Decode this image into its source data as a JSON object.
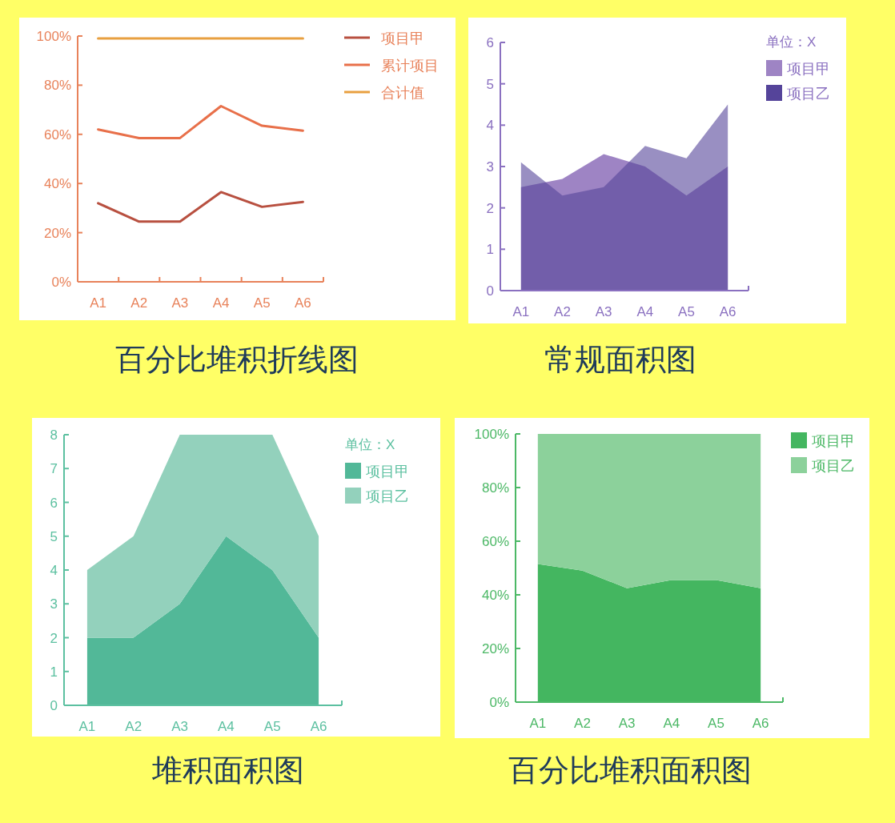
{
  "chart_data": [
    {
      "type": "line",
      "title": "百分比堆积折线图",
      "categories": [
        "A1",
        "A2",
        "A3",
        "A4",
        "A5",
        "A6"
      ],
      "ylim": [
        0,
        100
      ],
      "yticks": [
        {
          "value": 0,
          "label": "0%"
        },
        {
          "value": 20,
          "label": "20%"
        },
        {
          "value": 40,
          "label": "40%"
        },
        {
          "value": 60,
          "label": "60%"
        },
        {
          "value": 80,
          "label": "80%"
        },
        {
          "value": 100,
          "label": "100%"
        }
      ],
      "legend": "top right",
      "line_style": "solid",
      "marker": "none",
      "series": [
        {
          "name": "项目甲",
          "color": "#b85040",
          "values": [
            32,
            24.5,
            24.5,
            36.5,
            30.5,
            32.5
          ]
        },
        {
          "name": "累计项目",
          "color": "#e8704a",
          "values": [
            62,
            58.5,
            58.5,
            71.5,
            63.5,
            61.5
          ]
        },
        {
          "name": "合计值",
          "color": "#e8a040",
          "values": [
            99,
            99,
            99,
            99,
            99,
            99
          ]
        }
      ]
    },
    {
      "type": "area",
      "title": "常规面积图",
      "legend_title": "单位：X",
      "categories": [
        "A1",
        "A2",
        "A3",
        "A4",
        "A5",
        "A6"
      ],
      "ylim": [
        0,
        6
      ],
      "yticks": [
        0,
        1,
        2,
        3,
        4,
        5,
        6
      ],
      "legend": "top right",
      "series": [
        {
          "name": "项目甲",
          "color": "#9e84c4",
          "values": [
            2.5,
            2.7,
            3.3,
            3,
            2.3,
            3
          ]
        },
        {
          "name": "项目乙",
          "color": "#55449a",
          "values": [
            3.1,
            2.3,
            2.5,
            3.5,
            3.2,
            4.5
          ]
        }
      ]
    },
    {
      "type": "area",
      "title": "堆积面积图",
      "legend_title": "单位：X",
      "stacked": true,
      "categories": [
        "A1",
        "A2",
        "A3",
        "A4",
        "A5",
        "A6"
      ],
      "ylim": [
        0,
        8
      ],
      "yticks": [
        0,
        1,
        2,
        3,
        4,
        5,
        6,
        7,
        8
      ],
      "legend": "top right",
      "series": [
        {
          "name": "项目甲",
          "color": "#52b898",
          "values": [
            2,
            2,
            3,
            5,
            4,
            2
          ]
        },
        {
          "name": "项目乙",
          "color": "#93d1bc",
          "values": [
            2,
            3,
            5,
            3,
            4,
            3
          ]
        }
      ]
    },
    {
      "type": "area",
      "title": "百分比堆积面积图",
      "stacked": true,
      "categories": [
        "A1",
        "A2",
        "A3",
        "A4",
        "A5",
        "A6"
      ],
      "ylim": [
        0,
        100
      ],
      "yticks": [
        {
          "value": 0,
          "label": "0%"
        },
        {
          "value": 20,
          "label": "20%"
        },
        {
          "value": 40,
          "label": "40%"
        },
        {
          "value": 60,
          "label": "60%"
        },
        {
          "value": 80,
          "label": "80%"
        },
        {
          "value": 100,
          "label": "100%"
        }
      ],
      "legend": "top right",
      "series": [
        {
          "name": "项目甲",
          "color": "#44b660",
          "values": [
            51.5,
            49,
            42.5,
            45.5,
            45.5,
            42.5
          ]
        },
        {
          "name": "项目乙",
          "color": "#8cd19b",
          "values": [
            48.5,
            51,
            57.5,
            54.5,
            54.5,
            57.5
          ]
        }
      ]
    }
  ]
}
